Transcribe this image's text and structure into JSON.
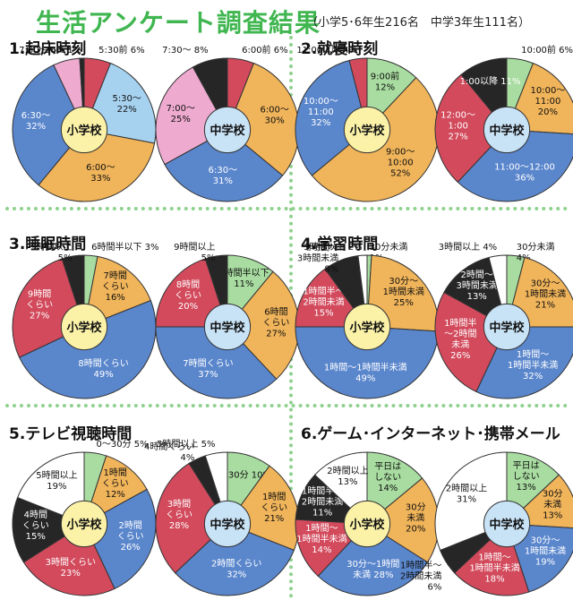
{
  "header": {
    "title": "生活アンケート調査結果",
    "subtitle": "（小学5･6年生216名　中学3年生111名）"
  },
  "sections": [
    {
      "title": "1.起床時刻"
    },
    {
      "title": "2.就寝時刻"
    },
    {
      "title": "3.睡眠時間"
    },
    {
      "title": "4.学習時間"
    },
    {
      "title": "5.テレビ視聴時間"
    },
    {
      "title": "6.ゲーム･インターネット･携帯メール"
    }
  ],
  "colors": {
    "green": "#a8dca0",
    "orange": "#f0b45a",
    "blue": "#5a86cc",
    "red": "#d24a5c",
    "black": "#262626",
    "white": "#ffffff",
    "pink": "#eeaacf",
    "lightblue": "#a6d2f0",
    "center_elem": "#fbf2a8",
    "center_mid": "#c8e2f6",
    "title_green": "#3fb64f",
    "divider": "#8fd18f"
  },
  "chart_data": [
    {
      "type": "pie",
      "section": "1.起床時刻",
      "center": "小学校",
      "slices": [
        {
          "label": "5:30前 6%",
          "value": 6,
          "color": "red"
        },
        {
          "label": "5:30～\n22%",
          "value": 22,
          "color": "lightblue"
        },
        {
          "label": "6:00～\n33%",
          "value": 33,
          "color": "orange"
        },
        {
          "label": "6:30～\n32%",
          "value": 32,
          "color": "blue"
        },
        {
          "label": "7:00～ 6%",
          "value": 6,
          "color": "pink"
        },
        {
          "label": "7:30～ 1%",
          "value": 1,
          "color": "black"
        }
      ]
    },
    {
      "type": "pie",
      "section": "1.起床時刻",
      "center": "中学校",
      "slices": [
        {
          "label": "6:00前 6%",
          "value": 6,
          "color": "red"
        },
        {
          "label": "6:00～\n30%",
          "value": 30,
          "color": "orange"
        },
        {
          "label": "6:30～\n31%",
          "value": 31,
          "color": "blue"
        },
        {
          "label": "7:00～\n25%",
          "value": 25,
          "color": "pink"
        },
        {
          "label": "7:30～ 8%",
          "value": 8,
          "color": "black"
        }
      ]
    },
    {
      "type": "pie",
      "section": "2.就寝時刻",
      "center": "小学校",
      "slices": [
        {
          "label": "9:00前\n12%",
          "value": 12,
          "color": "green"
        },
        {
          "label": "9:00～\n10:00\n52%",
          "value": 52,
          "color": "orange"
        },
        {
          "label": "10:00～\n11:00\n32%",
          "value": 32,
          "color": "blue"
        },
        {
          "label": "11:00以降 4%",
          "value": 4,
          "color": "red"
        }
      ]
    },
    {
      "type": "pie",
      "section": "2.就寝時刻",
      "center": "中学校",
      "slices": [
        {
          "label": "10:00前 6%",
          "value": 6,
          "color": "green"
        },
        {
          "label": "10:00～\n11:00\n20%",
          "value": 20,
          "color": "orange"
        },
        {
          "label": "11:00～12:00\n36%",
          "value": 36,
          "color": "blue"
        },
        {
          "label": "12:00～\n1:00\n27%",
          "value": 27,
          "color": "red"
        },
        {
          "label": "1:00以降 11%",
          "value": 11,
          "color": "black"
        }
      ]
    },
    {
      "type": "pie",
      "section": "3.睡眠時間",
      "center": "小学校",
      "slices": [
        {
          "label": "6時間半以下 3%",
          "value": 3,
          "color": "green"
        },
        {
          "label": "7時間\nくらい\n16%",
          "value": 16,
          "color": "orange"
        },
        {
          "label": "8時間くらい\n49%",
          "value": 49,
          "color": "blue"
        },
        {
          "label": "9時間\nくらい\n27%",
          "value": 27,
          "color": "red"
        },
        {
          "label": "9時間以上\n5%",
          "value": 5,
          "color": "black"
        }
      ]
    },
    {
      "type": "pie",
      "section": "3.睡眠時間",
      "center": "中学校",
      "slices": [
        {
          "label": "5時間半以下\n11%",
          "value": 11,
          "color": "green"
        },
        {
          "label": "6時間\nくらい\n27%",
          "value": 27,
          "color": "orange"
        },
        {
          "label": "7時間くらい\n37%",
          "value": 37,
          "color": "blue"
        },
        {
          "label": "8時間\nくらい\n20%",
          "value": 20,
          "color": "red"
        },
        {
          "label": "9時間以上\n5%",
          "value": 5,
          "color": "black"
        }
      ]
    },
    {
      "type": "pie",
      "section": "4.学習時間",
      "center": "小学校",
      "slices": [
        {
          "label": "30分未満\n1%",
          "value": 1,
          "color": "green"
        },
        {
          "label": "30分～\n1時間未満\n25%",
          "value": 25,
          "color": "orange"
        },
        {
          "label": "1時間～1時間半未満\n49%",
          "value": 49,
          "color": "blue"
        },
        {
          "label": "1時間半～\n2時間未満\n15%",
          "value": 15,
          "color": "red"
        },
        {
          "label": "2時間～\n3時間未満\n8%",
          "value": 8,
          "color": "black"
        },
        {
          "label": "3時間以上 2%",
          "value": 2,
          "color": "white"
        }
      ]
    },
    {
      "type": "pie",
      "section": "4.学習時間",
      "center": "中学校",
      "slices": [
        {
          "label": "30分未満\n4%",
          "value": 4,
          "color": "green"
        },
        {
          "label": "30分～\n1時間未満\n21%",
          "value": 21,
          "color": "orange"
        },
        {
          "label": "1時間～\n1時間半未満\n32%",
          "value": 32,
          "color": "blue"
        },
        {
          "label": "1時間半\n～2時間\n未満\n26%",
          "value": 26,
          "color": "red"
        },
        {
          "label": "2時間～\n3時間未満\n13%",
          "value": 13,
          "color": "black"
        },
        {
          "label": "3時間以上 4%",
          "value": 4,
          "color": "white"
        }
      ]
    },
    {
      "type": "pie",
      "section": "5.テレビ視聴時間",
      "center": "小学校",
      "slices": [
        {
          "label": "0～30分 5%",
          "value": 5,
          "color": "green"
        },
        {
          "label": "1時間\nくらい\n12%",
          "value": 12,
          "color": "orange"
        },
        {
          "label": "2時間\nくらい\n26%",
          "value": 26,
          "color": "blue"
        },
        {
          "label": "3時間くらい\n23%",
          "value": 23,
          "color": "red"
        },
        {
          "label": "4時間\nくらい\n15%",
          "value": 15,
          "color": "black"
        },
        {
          "label": "5時間以上\n19%",
          "value": 19,
          "color": "white"
        }
      ]
    },
    {
      "type": "pie",
      "section": "5.テレビ視聴時間",
      "center": "中学校",
      "slices": [
        {
          "label": "0～30分 10%",
          "value": 10,
          "color": "green"
        },
        {
          "label": "1時間\nくらい\n21%",
          "value": 21,
          "color": "orange"
        },
        {
          "label": "2時間くらい\n32%",
          "value": 32,
          "color": "blue"
        },
        {
          "label": "3時間\nくらい\n28%",
          "value": 28,
          "color": "red"
        },
        {
          "label": "4時間くらい\n4%",
          "value": 4,
          "color": "black"
        },
        {
          "label": "5時間以上 5%",
          "value": 5,
          "color": "white"
        }
      ]
    },
    {
      "type": "pie",
      "section": "6.ゲーム･インターネット･携帯メール",
      "center": "小学校",
      "slices": [
        {
          "label": "平日は\nしない\n14%",
          "value": 14,
          "color": "green"
        },
        {
          "label": "30分\n未満\n20%",
          "value": 20,
          "color": "orange"
        },
        {
          "label": "30分～1時間\n未満 28%",
          "value": 28,
          "color": "blue"
        },
        {
          "label": "1時間～\n1時間半未満\n14%",
          "value": 14,
          "color": "red"
        },
        {
          "label": "1時間半～\n2時間未満\n11%",
          "value": 11,
          "color": "black"
        },
        {
          "label": "2時間以上\n13%",
          "value": 13,
          "color": "white"
        }
      ]
    },
    {
      "type": "pie",
      "section": "6.ゲーム･インターネット･携帯メール",
      "center": "中学校",
      "slices": [
        {
          "label": "平日は\nしない\n13%",
          "value": 13,
          "color": "green"
        },
        {
          "label": "30分\n未満\n13%",
          "value": 13,
          "color": "orange"
        },
        {
          "label": "30分～\n1時間未満\n19%",
          "value": 19,
          "color": "blue"
        },
        {
          "label": "1時間～\n1時間半未満\n18%",
          "value": 18,
          "color": "red"
        },
        {
          "label": "1時間半～\n2時間未満\n6%",
          "value": 6,
          "color": "black"
        },
        {
          "label": "2時間以上\n31%",
          "value": 31,
          "color": "white"
        }
      ]
    }
  ]
}
